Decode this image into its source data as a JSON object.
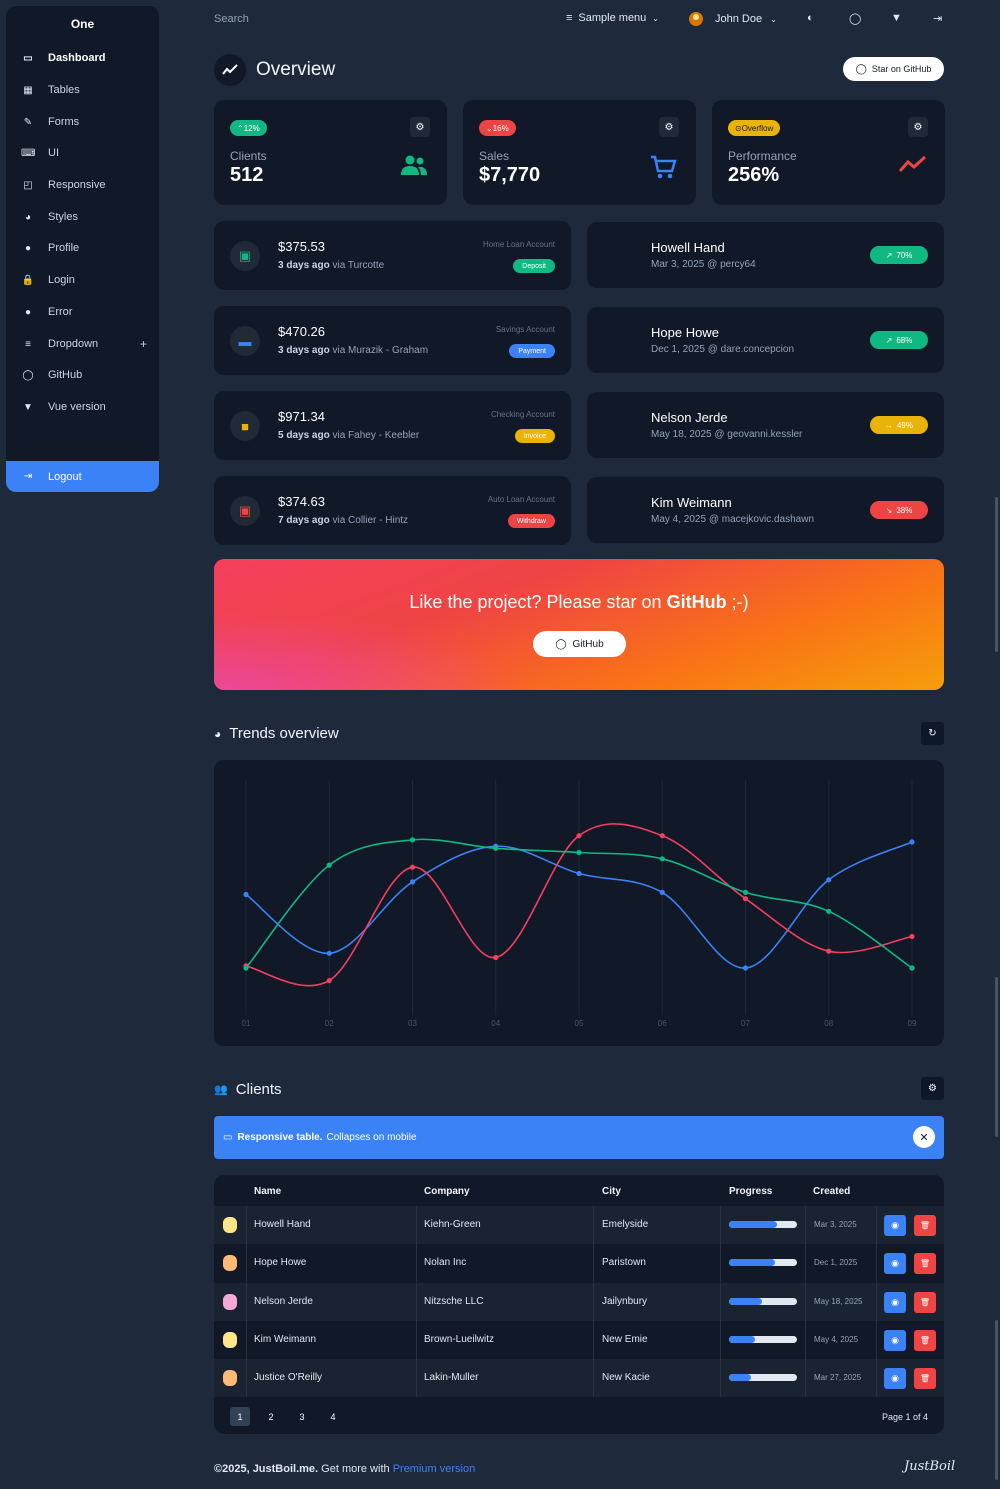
{
  "sidebar": {
    "title": "One",
    "items": [
      {
        "label": "Dashboard",
        "icon": "monitor-icon",
        "glyph": "▭"
      },
      {
        "label": "Tables",
        "icon": "table-icon",
        "glyph": "▦"
      },
      {
        "label": "Forms",
        "icon": "pencil-square-icon",
        "glyph": "✎"
      },
      {
        "label": "UI",
        "icon": "keyboard-icon",
        "glyph": "⌨"
      },
      {
        "label": "Responsive",
        "icon": "responsive-icon",
        "glyph": "◰"
      },
      {
        "label": "Styles",
        "icon": "palette-icon",
        "glyph": "◕"
      },
      {
        "label": "Profile",
        "icon": "account-circle-icon",
        "glyph": "●"
      },
      {
        "label": "Login",
        "icon": "lock-icon",
        "glyph": "🔒"
      },
      {
        "label": "Error",
        "icon": "alert-circle-icon",
        "glyph": "●"
      },
      {
        "label": "Dropdown",
        "icon": "list-icon",
        "glyph": "≡"
      },
      {
        "label": "GitHub",
        "icon": "github-icon",
        "glyph": "◯"
      },
      {
        "label": "Vue version",
        "icon": "vuejs-icon",
        "glyph": "▼"
      }
    ],
    "dropdown_plus": "+",
    "logout_label": "Logout"
  },
  "topbar": {
    "search_placeholder": "Search",
    "menu_label": "Sample menu",
    "user_name": "John Doe"
  },
  "overview": {
    "title": "Overview",
    "star_button": "Star on GitHub"
  },
  "stats": [
    {
      "badge": "12%",
      "badge_color": "#10b981",
      "label": "Clients",
      "value": "512",
      "icon": "account-multiple-icon",
      "icon_color": "#10b981"
    },
    {
      "badge": "16%",
      "badge_color": "#ef4444",
      "label": "Sales",
      "value": "$7,770",
      "icon": "cart-icon",
      "icon_color": "#3b82f6"
    },
    {
      "badge": "Overflow",
      "badge_color": "#eab308",
      "label": "Performance",
      "value": "256%",
      "icon": "finance-icon",
      "icon_color": "#ef4444"
    }
  ],
  "transactions": [
    {
      "amount": "$375.53",
      "when": "3 days ago",
      "via": "via Turcotte",
      "account": "Home Loan Account",
      "type": "Deposit",
      "type_color": "#10b981",
      "icon": "cash-icon",
      "icon_color": "#10b981"
    },
    {
      "amount": "$470.26",
      "when": "3 days ago",
      "via": "via Murazik - Graham",
      "account": "Savings Account",
      "type": "Payment",
      "type_color": "#3b82f6",
      "icon": "credit-card-icon",
      "icon_color": "#3b82f6"
    },
    {
      "amount": "$971.34",
      "when": "5 days ago",
      "via": "via Fahey - Keebler",
      "account": "Checking Account",
      "type": "Invoice",
      "type_color": "#eab308",
      "icon": "receipt-icon",
      "icon_color": "#eab308"
    },
    {
      "amount": "$374.63",
      "when": "7 days ago",
      "via": "via Collier - Hintz",
      "account": "Auto Loan Account",
      "type": "Withdraw",
      "type_color": "#ef4444",
      "icon": "cash-minus-icon",
      "icon_color": "#ef4444"
    }
  ],
  "people": [
    {
      "name": "Howell Hand",
      "sub": "Mar 3, 2025 @ percy64",
      "badge": "70%",
      "badge_color": "#10b981",
      "trend": "↗"
    },
    {
      "name": "Hope Howe",
      "sub": "Dec 1, 2025 @ dare.concepcion",
      "badge": "68%",
      "badge_color": "#10b981",
      "trend": "↗"
    },
    {
      "name": "Nelson Jerde",
      "sub": "May 18, 2025 @ geovanni.kessler",
      "badge": "49%",
      "badge_color": "#eab308",
      "trend": "→"
    },
    {
      "name": "Kim Weimann",
      "sub": "May 4, 2025 @ macejkovic.dashawn",
      "badge": "38%",
      "badge_color": "#ef4444",
      "trend": "↘"
    }
  ],
  "banner": {
    "text_before": "Like the project? Please star on ",
    "text_bold": "GitHub",
    "text_after": " ;-)",
    "button": "GitHub"
  },
  "trends": {
    "title": "Trends overview"
  },
  "chart_data": {
    "type": "line",
    "x": [
      "01",
      "02",
      "03",
      "04",
      "05",
      "06",
      "07",
      "08",
      "09"
    ],
    "ylim": [
      0,
      100
    ],
    "series": [
      {
        "color": "#3b82f6",
        "values": [
          55,
          27,
          61,
          78,
          65,
          56,
          20,
          62,
          80
        ]
      },
      {
        "color": "#f43f5e",
        "values": [
          21,
          14,
          68,
          25,
          83,
          83,
          53,
          28,
          35
        ]
      },
      {
        "color": "#10b981",
        "values": [
          20,
          69,
          81,
          77,
          75,
          72,
          56,
          47,
          20
        ]
      }
    ]
  },
  "clients": {
    "title": "Clients",
    "notice_bold": "Responsive table.",
    "notice_text": "Collapses on mobile",
    "columns": [
      "Name",
      "Company",
      "City",
      "Progress",
      "Created"
    ],
    "rows": [
      {
        "name": "Howell Hand",
        "company": "Kiehn-Green",
        "city": "Emelyside",
        "progress": 70,
        "created": "Mar 3, 2025",
        "avatar_color": "#fde68a"
      },
      {
        "name": "Hope Howe",
        "company": "Nolan Inc",
        "city": "Paristown",
        "progress": 68,
        "created": "Dec 1, 2025",
        "avatar_color": "#fdba74"
      },
      {
        "name": "Nelson Jerde",
        "company": "Nitzsche LLC",
        "city": "Jailynbury",
        "progress": 49,
        "created": "May 18, 2025",
        "avatar_color": "#f9a8d4"
      },
      {
        "name": "Kim Weimann",
        "company": "Brown-Lueilwitz",
        "city": "New Emie",
        "progress": 38,
        "created": "May 4, 2025",
        "avatar_color": "#fde68a"
      },
      {
        "name": "Justice O'Reilly",
        "company": "Lakin-Muller",
        "city": "New Kacie",
        "progress": 32,
        "created": "Mar 27, 2025",
        "avatar_color": "#fdba74"
      }
    ],
    "pages": [
      "1",
      "2",
      "3",
      "4"
    ],
    "page_info": "Page 1 of 4"
  },
  "footer": {
    "copyright": "©2025, JustBoil.me.",
    "text": "Get more with",
    "link": "Premium version",
    "logo": "JustBoil"
  }
}
